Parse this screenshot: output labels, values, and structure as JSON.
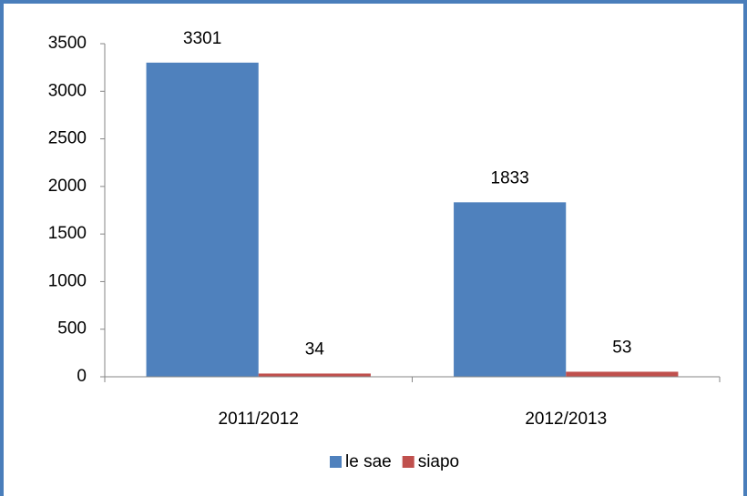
{
  "chart_data": {
    "type": "bar",
    "categories": [
      "2011/2012",
      "2012/2013"
    ],
    "series": [
      {
        "name": "le sae",
        "color": "#4f81bd",
        "values": [
          3301,
          1833
        ]
      },
      {
        "name": "siapo",
        "color": "#c0504d",
        "values": [
          34,
          53
        ]
      }
    ],
    "ylim": [
      0,
      3500
    ],
    "yticks": [
      0,
      500,
      1000,
      1500,
      2000,
      2500,
      3000,
      3500
    ],
    "grid": false,
    "legend": "bottom",
    "data_labels": true
  }
}
